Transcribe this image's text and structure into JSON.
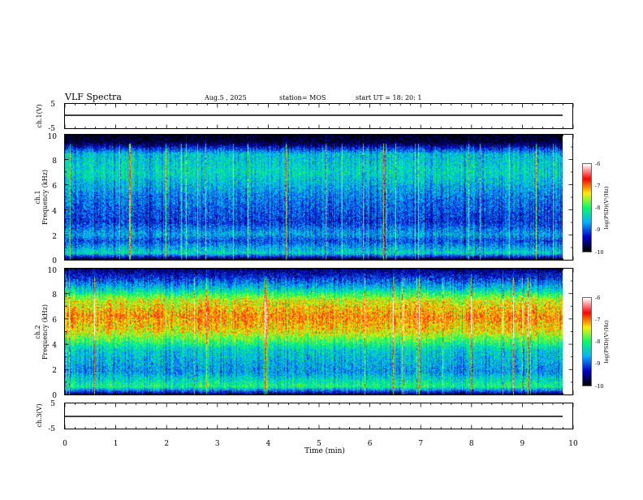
{
  "header": {
    "title": "VLF Spectra",
    "date": "Aug.5 , 2025",
    "station": "station= MOS",
    "start": "start UT = 18: 20: 1"
  },
  "chart_data": [
    {
      "type": "line",
      "panel": "ch1-waveform",
      "ylabel": "ch.1(V)",
      "ylim": [
        -5,
        5
      ],
      "yticks": [
        "5",
        "-5"
      ],
      "x": [
        0,
        9.84
      ],
      "values": [
        0,
        0
      ],
      "xlim": [
        0,
        10
      ]
    },
    {
      "type": "heatmap",
      "panel": "ch1-spectrogram",
      "ylabel": "ch.1",
      "ylabel2": "Frequency (kHz)",
      "ylim": [
        0,
        10
      ],
      "yticks": [
        "0",
        "2",
        "4",
        "6",
        "8",
        "10"
      ],
      "xlim": [
        0,
        10
      ],
      "x_data_end": 9.84,
      "colorbar": {
        "label": "log(PSD)(V²/Hz)",
        "range": [
          -10,
          -6
        ],
        "ticks": [
          "-6",
          "-7",
          "-8",
          "-9",
          "-10"
        ],
        "colors": [
          "#ffffff",
          "#ff0000",
          "#ffee00",
          "#00ff66",
          "#00b4ff",
          "#0000cc",
          "#000000"
        ]
      },
      "mean_level_by_freq_khz": [
        [
          0,
          -9.8
        ],
        [
          0.5,
          -8.3
        ],
        [
          1.5,
          -9.0
        ],
        [
          2.0,
          -8.6
        ],
        [
          3.0,
          -9.1
        ],
        [
          5.0,
          -8.8
        ],
        [
          7.0,
          -8.3
        ],
        [
          8.5,
          -8.5
        ],
        [
          9.4,
          -9.8
        ],
        [
          10,
          -10
        ]
      ]
    },
    {
      "type": "heatmap",
      "panel": "ch2-spectrogram",
      "ylabel": "ch.2",
      "ylabel2": "Frequency (kHz)",
      "ylim": [
        0,
        10
      ],
      "yticks": [
        "0",
        "2",
        "4",
        "6",
        "8",
        "10"
      ],
      "xlim": [
        0,
        10
      ],
      "x_data_end": 9.84,
      "colorbar": {
        "label": "log(PSD)(V²/Hz)",
        "range": [
          -10,
          -6
        ],
        "ticks": [
          "-6",
          "-7",
          "-8",
          "-9",
          "-10"
        ],
        "colors": [
          "#ffffff",
          "#ff0000",
          "#ffee00",
          "#00ff66",
          "#00b4ff",
          "#0000cc",
          "#000000"
        ]
      },
      "mean_level_by_freq_khz": [
        [
          0,
          -9.6
        ],
        [
          0.6,
          -8.0
        ],
        [
          1.8,
          -8.7
        ],
        [
          3.5,
          -8.4
        ],
        [
          5.0,
          -7.3
        ],
        [
          6.2,
          -7.0
        ],
        [
          7.5,
          -7.4
        ],
        [
          8.5,
          -8.5
        ],
        [
          9.5,
          -9.3
        ],
        [
          10,
          -9.6
        ]
      ]
    },
    {
      "type": "line",
      "panel": "ch3-waveform",
      "ylabel": "ch.3(V)",
      "ylim": [
        -5,
        5
      ],
      "yticks": [
        "5",
        "-5"
      ],
      "x": [
        0,
        9.84
      ],
      "values": [
        0,
        0
      ],
      "xlim": [
        0,
        10
      ]
    }
  ],
  "x_axis": {
    "label": "Time (min)",
    "ticks": [
      "0",
      "1",
      "2",
      "3",
      "4",
      "5",
      "6",
      "7",
      "8",
      "9",
      "10"
    ]
  }
}
